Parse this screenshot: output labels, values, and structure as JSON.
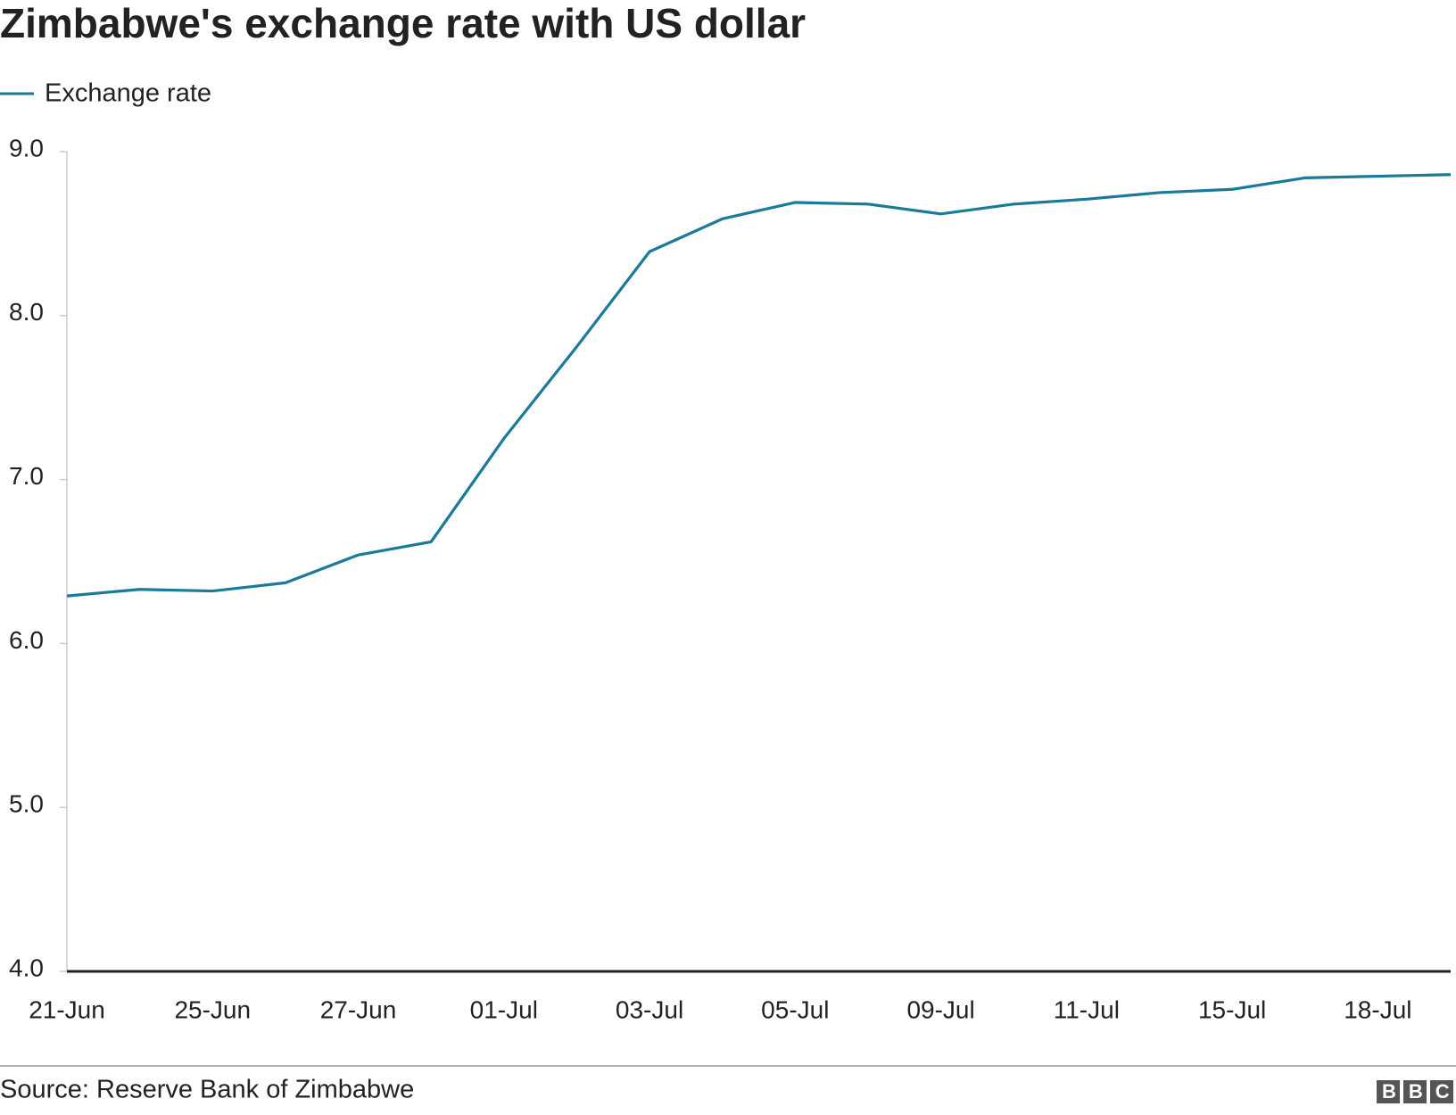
{
  "chart_data": {
    "type": "line",
    "title": "Zimbabwe's exchange rate with US dollar",
    "categories": [
      "21-Jun",
      null,
      "25-Jun",
      null,
      "27-Jun",
      null,
      "01-Jul",
      null,
      "03-Jul",
      null,
      "05-Jul",
      null,
      "09-Jul",
      null,
      "11-Jul",
      null,
      "15-Jul",
      null,
      "18-Jul",
      null
    ],
    "series": [
      {
        "name": "Exchange rate",
        "color": "#1b7a99",
        "values": [
          6.29,
          6.33,
          6.32,
          6.37,
          6.54,
          6.62,
          7.25,
          7.81,
          8.39,
          8.59,
          8.69,
          8.68,
          8.62,
          8.68,
          8.71,
          8.75,
          8.77,
          8.84,
          8.85,
          8.86
        ]
      }
    ],
    "ylim": [
      4,
      9
    ],
    "yticks": [
      {
        "value": 4,
        "label": "4.0"
      },
      {
        "value": 5,
        "label": "5.0"
      },
      {
        "value": 6,
        "label": "6.0"
      },
      {
        "value": 7,
        "label": "7.0"
      },
      {
        "value": 8,
        "label": "8.0"
      },
      {
        "value": 9,
        "label": "9.0"
      }
    ],
    "source": "Source: Reserve Bank of Zimbabwe",
    "brand": "BBC"
  }
}
